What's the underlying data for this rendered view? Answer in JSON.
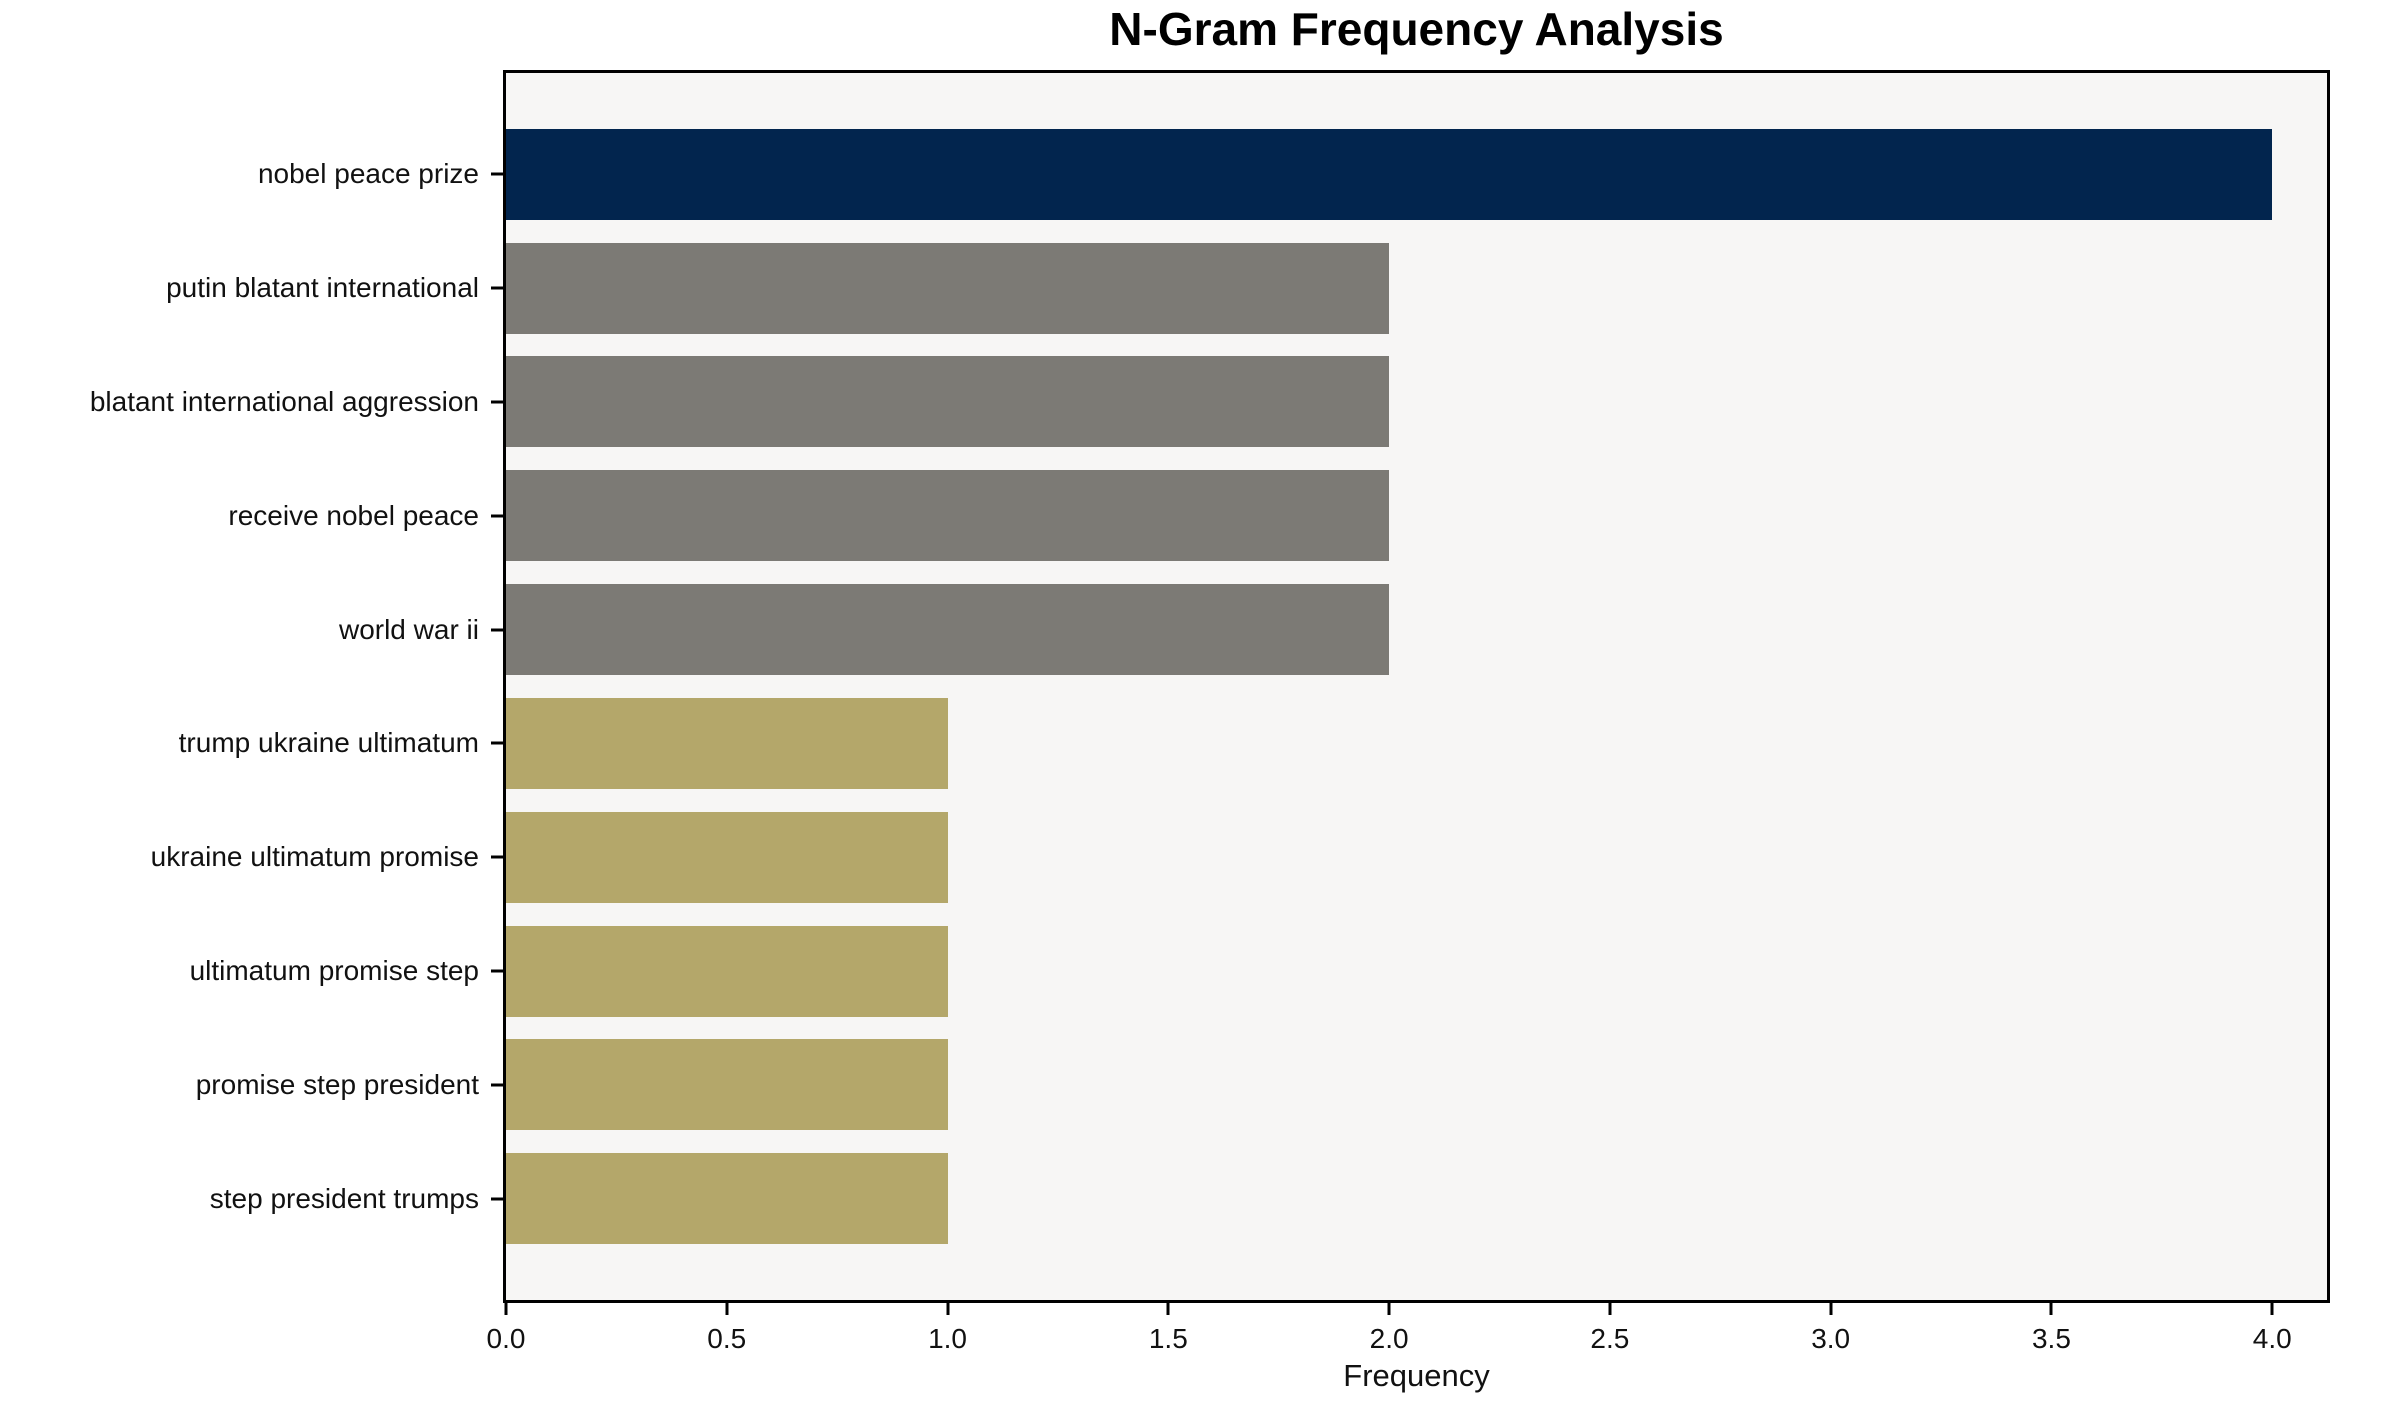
{
  "chart_data": {
    "type": "bar",
    "orientation": "horizontal",
    "title": "N-Gram Frequency Analysis",
    "xlabel": "Frequency",
    "ylabel": "",
    "categories": [
      "nobel peace prize",
      "putin blatant international",
      "blatant international aggression",
      "receive nobel peace",
      "world war ii",
      "trump ukraine ultimatum",
      "ukraine ultimatum promise",
      "ultimatum promise step",
      "promise step president",
      "step president trumps"
    ],
    "values": [
      4,
      2,
      2,
      2,
      2,
      1,
      1,
      1,
      1,
      1
    ],
    "bar_colors": [
      "#02254e",
      "#7c7a75",
      "#7c7a75",
      "#7c7a75",
      "#7c7a75",
      "#b4a76a",
      "#b4a76a",
      "#b4a76a",
      "#b4a76a",
      "#b4a76a"
    ],
    "xticks": [
      0.0,
      0.5,
      1.0,
      1.5,
      2.0,
      2.5,
      3.0,
      3.5,
      4.0
    ],
    "xtick_labels": [
      "0.0",
      "0.5",
      "1.0",
      "1.5",
      "2.0",
      "2.5",
      "3.0",
      "3.5",
      "4.0"
    ],
    "xlim": [
      0,
      4.124
    ],
    "grid": false,
    "legend": null,
    "plot_background": "#f7f6f5",
    "frame_color": "#000000",
    "text_color": "#111111",
    "title_color": "#000000"
  }
}
